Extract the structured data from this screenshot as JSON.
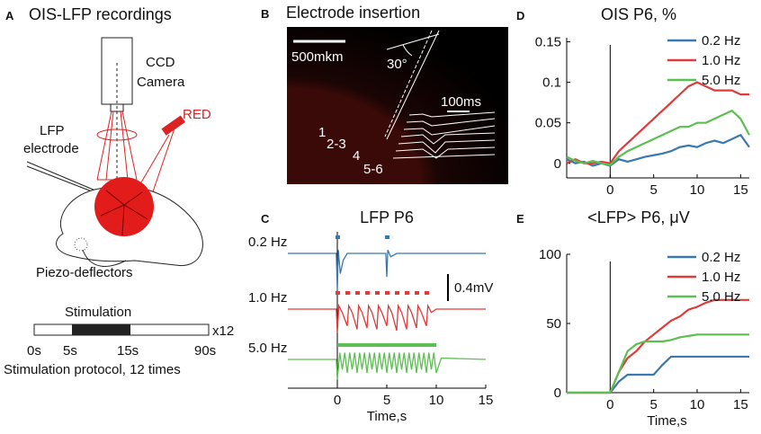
{
  "panel_a": {
    "letter": "A",
    "title": "OIS-LFP recordings",
    "camera": [
      "CCD",
      "Camera"
    ],
    "light": "RED",
    "electrode": [
      "LFP",
      "electrode"
    ],
    "stimulator": "Piezo-deflectors",
    "protocol": {
      "label": "Stimulation",
      "repeats": "x12",
      "ticks": [
        "0s",
        "5s",
        "15s",
        "90s"
      ],
      "caption": "Stimulation protocol, 12 times"
    }
  },
  "panel_b": {
    "letter": "B",
    "title": "Electrode insertion",
    "scale": "500mkm",
    "angle": "30°",
    "time_scale": "100ms",
    "layers": [
      "1",
      "2-3",
      "4",
      "5-6"
    ]
  },
  "chart_data": [
    {
      "letter": "C",
      "type": "traces",
      "title": "LFP P6",
      "xlabel": "Time,s",
      "xlim": [
        -5,
        15
      ],
      "xticks": [
        0,
        5,
        10,
        15
      ],
      "onset": 0,
      "scalebar": {
        "value": 0.4,
        "label": "0.4mV"
      },
      "series": [
        {
          "name": "0.2 Hz",
          "color": "#3a78b0",
          "stimulus": [
            0,
            5
          ],
          "x": [
            -5,
            -0.1,
            0,
            0.1,
            0.3,
            0.6,
            1,
            4.9,
            5,
            5.1,
            5.4,
            6,
            15
          ],
          "values": [
            0,
            0,
            -0.55,
            0.05,
            -0.3,
            -0.1,
            0,
            0,
            -0.35,
            0.05,
            -0.05,
            0,
            0
          ]
        },
        {
          "name": "1.0 Hz",
          "color": "#e03a3a",
          "stimulus": [
            0,
            1,
            2,
            3,
            4,
            5,
            6,
            7,
            8,
            9
          ],
          "x": [
            -5,
            -0.1,
            0,
            0.15,
            0.5,
            1,
            1.15,
            1.5,
            2,
            2.15,
            2.5,
            3,
            3.15,
            3.5,
            4,
            4.15,
            4.5,
            5,
            5.15,
            5.5,
            6,
            6.15,
            6.5,
            7,
            7.15,
            7.5,
            8,
            8.15,
            8.5,
            9,
            9.15,
            9.5,
            10,
            15
          ],
          "values": [
            0,
            0,
            -0.35,
            0.05,
            -0.05,
            -0.25,
            0.05,
            -0.05,
            -0.3,
            0.05,
            -0.05,
            -0.28,
            0.05,
            -0.05,
            -0.3,
            0.05,
            -0.05,
            -0.25,
            0.05,
            -0.05,
            -0.32,
            0.05,
            -0.05,
            -0.3,
            0.05,
            -0.05,
            -0.28,
            0.05,
            -0.05,
            -0.25,
            0.05,
            -0.05,
            0,
            0
          ]
        },
        {
          "name": "5.0 Hz",
          "color": "#5cbf52",
          "stimulus_range": [
            0,
            10
          ],
          "x": [
            -5,
            -0.1,
            0,
            0.25,
            0.5,
            0.75,
            1,
            1.25,
            1.5,
            1.75,
            2,
            2.25,
            2.5,
            2.75,
            3,
            3.25,
            3.5,
            3.75,
            4,
            4.25,
            4.5,
            4.75,
            5,
            5.25,
            5.5,
            5.75,
            6,
            6.25,
            6.5,
            6.75,
            7,
            7.25,
            7.5,
            7.75,
            8,
            8.25,
            8.5,
            8.75,
            9,
            9.25,
            9.5,
            9.75,
            10,
            10.5,
            15
          ],
          "values": [
            0,
            0,
            -0.3,
            0.1,
            -0.15,
            0.1,
            -0.2,
            0.1,
            -0.15,
            0.1,
            -0.2,
            0.1,
            -0.15,
            0.1,
            -0.2,
            0.1,
            -0.15,
            0.1,
            -0.2,
            0.1,
            -0.15,
            0.1,
            -0.2,
            0.1,
            -0.15,
            0.1,
            -0.2,
            0.1,
            -0.15,
            0.1,
            -0.2,
            0.1,
            -0.15,
            0.1,
            -0.2,
            0.1,
            -0.15,
            0.1,
            -0.2,
            0.1,
            -0.15,
            0.1,
            -0.2,
            0.02,
            0
          ]
        }
      ]
    },
    {
      "letter": "D",
      "type": "line",
      "title": "OIS P6, %",
      "xlabel": null,
      "xlim": [
        -5,
        16
      ],
      "xticks": [
        0,
        5,
        10,
        15
      ],
      "ylim": [
        -0.018,
        0.155
      ],
      "yticks": [
        0,
        0.05,
        0.1,
        0.15
      ],
      "onset": 0,
      "legend": "upper right",
      "x": [
        -5,
        -4,
        -3,
        -2,
        -1,
        0,
        1,
        2,
        3,
        4,
        5,
        6,
        7,
        8,
        9,
        10,
        11,
        12,
        13,
        14,
        15,
        16
      ],
      "series": [
        {
          "name": "0.2 Hz",
          "color": "#3a78b0",
          "values": [
            0.005,
            0,
            0.002,
            -0.003,
            0,
            -0.003,
            0.005,
            0.002,
            0.005,
            0.008,
            0.01,
            0.012,
            0.015,
            0.02,
            0.022,
            0.02,
            0.025,
            0.028,
            0.025,
            0.03,
            0.035,
            0.02
          ]
        },
        {
          "name": "1.0 Hz",
          "color": "#e03a3a",
          "values": [
            0,
            0.005,
            0,
            0,
            0.002,
            0,
            0.015,
            0.025,
            0.035,
            0.045,
            0.055,
            0.065,
            0.075,
            0.085,
            0.095,
            0.1,
            0.095,
            0.09,
            0.09,
            0.09,
            0.085,
            0.085
          ]
        },
        {
          "name": "5.0 Hz",
          "color": "#5cbf52",
          "values": [
            0.008,
            0.003,
            0,
            0.003,
            0,
            -0.002,
            0.008,
            0.015,
            0.02,
            0.025,
            0.03,
            0.035,
            0.04,
            0.045,
            0.045,
            0.05,
            0.05,
            0.055,
            0.06,
            0.065,
            0.055,
            0.035
          ]
        }
      ]
    },
    {
      "letter": "E",
      "type": "line",
      "title": "<LFP> P6, μV",
      "xlabel": "Time,s",
      "xlim": [
        -5,
        16
      ],
      "xticks": [
        0,
        5,
        10,
        15
      ],
      "ylim": [
        0,
        100
      ],
      "yticks": [
        0,
        50,
        100
      ],
      "onset": 0,
      "legend": "upper right",
      "x": [
        -5,
        0,
        1,
        2,
        3,
        4,
        5,
        6,
        7,
        8,
        9,
        10,
        11,
        12,
        16
      ],
      "series": [
        {
          "name": "0.2 Hz",
          "color": "#3a78b0",
          "values": [
            0,
            0,
            8,
            13,
            13,
            13,
            13,
            20,
            26,
            26,
            26,
            26,
            26,
            26,
            26
          ]
        },
        {
          "name": "1.0 Hz",
          "color": "#e03a3a",
          "values": [
            0,
            0,
            15,
            25,
            30,
            37,
            42,
            47,
            52,
            55,
            60,
            62,
            65,
            67,
            67
          ]
        },
        {
          "name": "5.0 Hz",
          "color": "#5cbf52",
          "values": [
            0,
            0,
            15,
            30,
            35,
            37,
            37,
            37,
            38,
            40,
            41,
            42,
            42,
            42,
            42
          ]
        }
      ]
    }
  ]
}
